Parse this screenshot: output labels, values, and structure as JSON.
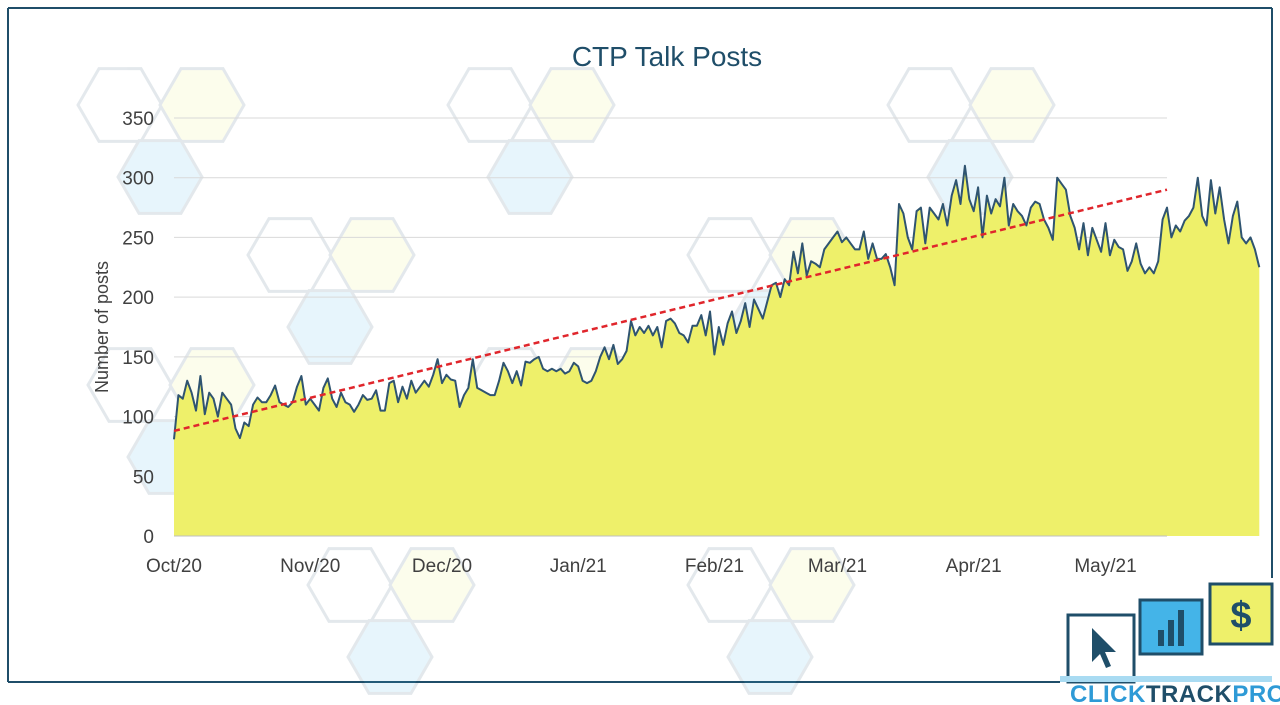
{
  "chart_data": {
    "type": "area",
    "title": "CTP Talk Posts",
    "xlabel": "",
    "ylabel": "Number of posts",
    "x_tick_labels": [
      "Oct/20",
      "Nov/20",
      "Dec/20",
      "Jan/21",
      "Feb/21",
      "Mar/21",
      "Apr/21",
      "May/21"
    ],
    "x_tick_days": [
      0,
      31,
      61,
      92,
      123,
      151,
      182,
      212
    ],
    "y_ticks": [
      0,
      50,
      100,
      150,
      200,
      250,
      300,
      350
    ],
    "ylim": [
      0,
      350
    ],
    "xlim_days": [
      0,
      226
    ],
    "grid": true,
    "colors": {
      "area": "#eef06a",
      "line": "#2f5470",
      "trend": "#e0262c",
      "grid": "#d9d9d9",
      "title": "#1f4e69"
    },
    "series": [
      {
        "style": "area",
        "values": [
          81,
          118,
          115,
          130,
          120,
          105,
          134,
          102,
          120,
          115,
          100,
          120,
          115,
          110,
          90,
          82,
          95,
          92,
          110,
          116,
          112,
          112,
          118,
          126,
          112,
          110,
          108,
          112,
          125,
          134,
          110,
          115,
          110,
          105,
          124,
          132,
          115,
          108,
          120,
          112,
          110,
          104,
          110,
          118,
          114,
          115,
          122,
          105,
          105,
          128,
          130,
          112,
          125,
          115,
          130,
          120,
          125,
          130,
          125,
          135,
          148,
          128,
          135,
          131,
          130,
          108,
          118,
          124,
          148,
          124,
          122,
          120,
          118,
          118,
          130,
          145,
          138,
          128,
          138,
          126,
          146,
          145,
          148,
          150,
          140,
          138,
          140,
          138,
          140,
          136,
          138,
          145,
          142,
          130,
          128,
          130,
          138,
          150,
          158,
          148,
          160,
          144,
          148,
          155,
          180,
          168,
          175,
          170,
          176,
          168,
          175,
          158,
          180,
          182,
          178,
          170,
          168,
          162,
          176,
          176,
          185,
          168,
          188,
          152,
          175,
          160,
          178,
          188,
          170,
          180,
          195,
          175,
          198,
          190,
          182,
          196,
          210,
          212,
          200,
          215,
          210,
          238,
          220,
          245,
          218,
          230,
          228,
          225,
          240,
          245,
          250,
          255,
          246,
          250,
          245,
          240,
          240,
          255,
          232,
          245,
          232,
          232,
          236,
          225,
          210,
          278,
          270,
          250,
          240,
          272,
          275,
          245,
          275,
          270,
          265,
          278,
          260,
          285,
          298,
          278,
          310,
          282,
          272,
          292,
          250,
          285,
          270,
          282,
          276,
          300,
          260,
          278,
          272,
          268,
          260,
          275,
          280,
          278,
          265,
          258,
          248,
          300,
          295,
          290,
          268,
          258,
          240,
          262,
          235,
          258,
          248,
          238,
          262,
          235,
          248,
          242,
          240,
          222,
          230,
          245,
          228,
          220,
          225,
          220,
          230,
          265,
          275,
          250,
          260,
          255,
          264,
          268,
          275,
          300,
          268,
          260,
          298,
          270,
          292,
          265,
          245,
          268,
          280,
          250,
          245,
          250,
          240,
          225
        ]
      },
      {
        "style": "dashed-trend",
        "values": [
          88,
          290
        ]
      }
    ]
  },
  "branding": {
    "text_click": "CLICK",
    "text_track": "TRACK",
    "text_profit": "PROFIT",
    "dollar_glyph": "$"
  }
}
